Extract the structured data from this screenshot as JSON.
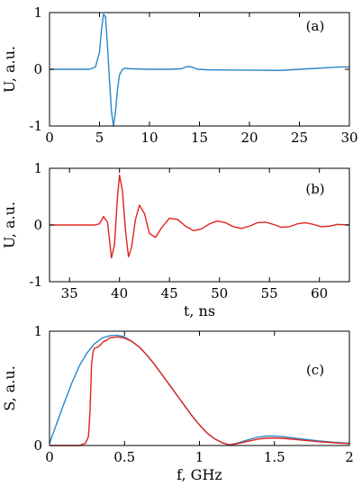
{
  "colors": {
    "blue": "#2a86c8",
    "red": "#e0231d"
  },
  "chart_data": [
    {
      "panel": "(a)",
      "type": "line",
      "xlabel": "",
      "ylabel": "U, a.u.",
      "xlim": [
        0,
        30
      ],
      "ylim": [
        -1,
        1
      ],
      "xticks": [
        0,
        5,
        10,
        15,
        20,
        25,
        30
      ],
      "yticks": [
        -1,
        0,
        1
      ],
      "series": [
        {
          "color": "blue",
          "x": [
            0,
            4.0,
            4.6,
            5.0,
            5.2,
            5.4,
            5.6,
            5.8,
            6.0,
            6.2,
            6.4,
            6.6,
            6.8,
            7.0,
            7.3,
            7.6,
            8.0,
            10,
            12,
            13.2,
            13.6,
            14.0,
            14.4,
            14.8,
            16,
            20,
            23,
            26,
            28,
            29,
            30
          ],
          "y": [
            0,
            0,
            0.04,
            0.3,
            0.7,
            0.97,
            0.93,
            0.4,
            -0.2,
            -0.75,
            -1.0,
            -0.75,
            -0.35,
            -0.1,
            0,
            0.02,
            0.01,
            0,
            0,
            0.01,
            0.04,
            0.05,
            0.03,
            0,
            -0.01,
            -0.015,
            -0.02,
            0.01,
            0.03,
            0.04,
            0.04
          ]
        }
      ]
    },
    {
      "panel": "(b)",
      "type": "line",
      "xlabel": "t, ns",
      "ylabel": "U, a.u.",
      "xlim": [
        33,
        63
      ],
      "ylim": [
        -1,
        1
      ],
      "xticks": [
        35,
        40,
        45,
        50,
        55,
        60
      ],
      "yticks": [
        -1,
        0,
        1
      ],
      "series": [
        {
          "color": "red",
          "x": [
            33,
            37.5,
            38.0,
            38.4,
            38.8,
            39.2,
            39.5,
            39.8,
            40.0,
            40.3,
            40.6,
            40.9,
            41.2,
            41.6,
            42.0,
            42.5,
            43.0,
            43.6,
            44.2,
            45.0,
            45.8,
            46.6,
            47.4,
            48.2,
            49.0,
            49.8,
            50.6,
            51.4,
            52.2,
            53.0,
            53.8,
            54.6,
            55.4,
            56.2,
            57.0,
            57.8,
            58.6,
            59.4,
            60.2,
            61.0,
            61.8,
            63
          ],
          "y": [
            0,
            0,
            0.02,
            0.15,
            0.05,
            -0.58,
            -0.35,
            0.5,
            0.88,
            0.6,
            -0.1,
            -0.56,
            -0.4,
            0.1,
            0.35,
            0.2,
            -0.15,
            -0.22,
            -0.05,
            0.12,
            0.1,
            -0.02,
            -0.1,
            -0.07,
            0.02,
            0.07,
            0.04,
            -0.03,
            -0.06,
            -0.02,
            0.04,
            0.05,
            0.01,
            -0.04,
            -0.03,
            0.02,
            0.04,
            0.01,
            -0.03,
            -0.02,
            0.01,
            0
          ]
        }
      ]
    },
    {
      "panel": "(c)",
      "type": "line",
      "xlabel": "f, GHz",
      "ylabel": "S, a.u.",
      "xlim": [
        0,
        2
      ],
      "ylim": [
        0,
        1
      ],
      "xticks": [
        0,
        0.5,
        1,
        1.5,
        2
      ],
      "xtick_labels": [
        "0",
        "0.5",
        "1",
        "1.5",
        "2"
      ],
      "yticks": [
        0,
        1
      ],
      "series": [
        {
          "color": "blue",
          "x": [
            0,
            0.05,
            0.1,
            0.15,
            0.2,
            0.25,
            0.3,
            0.35,
            0.4,
            0.45,
            0.5,
            0.55,
            0.6,
            0.65,
            0.7,
            0.75,
            0.8,
            0.85,
            0.9,
            0.95,
            1.0,
            1.05,
            1.1,
            1.15,
            1.2,
            1.25,
            1.3,
            1.35,
            1.4,
            1.45,
            1.5,
            1.55,
            1.6,
            1.7,
            1.8,
            1.9,
            2.0
          ],
          "y": [
            0.02,
            0.2,
            0.38,
            0.55,
            0.7,
            0.81,
            0.89,
            0.94,
            0.96,
            0.965,
            0.95,
            0.91,
            0.86,
            0.79,
            0.71,
            0.62,
            0.53,
            0.44,
            0.35,
            0.26,
            0.18,
            0.11,
            0.06,
            0.025,
            0.005,
            0.02,
            0.04,
            0.06,
            0.075,
            0.082,
            0.083,
            0.078,
            0.07,
            0.055,
            0.04,
            0.028,
            0.02
          ]
        },
        {
          "color": "red",
          "x": [
            0,
            0.2,
            0.24,
            0.26,
            0.27,
            0.28,
            0.29,
            0.3,
            0.32,
            0.34,
            0.36,
            0.38,
            0.4,
            0.45,
            0.5,
            0.55,
            0.6,
            0.65,
            0.7,
            0.75,
            0.8,
            0.85,
            0.9,
            0.95,
            1.0,
            1.05,
            1.1,
            1.15,
            1.2,
            1.25,
            1.3,
            1.35,
            1.4,
            1.45,
            1.5,
            1.55,
            1.6,
            1.7,
            1.8,
            1.9,
            2.0
          ],
          "y": [
            0,
            0,
            0.02,
            0.08,
            0.3,
            0.7,
            0.82,
            0.85,
            0.86,
            0.88,
            0.91,
            0.92,
            0.94,
            0.95,
            0.94,
            0.91,
            0.86,
            0.79,
            0.71,
            0.62,
            0.53,
            0.44,
            0.35,
            0.26,
            0.18,
            0.11,
            0.06,
            0.025,
            0.005,
            0.015,
            0.03,
            0.045,
            0.058,
            0.064,
            0.066,
            0.063,
            0.058,
            0.045,
            0.033,
            0.023,
            0.016
          ]
        }
      ]
    }
  ]
}
